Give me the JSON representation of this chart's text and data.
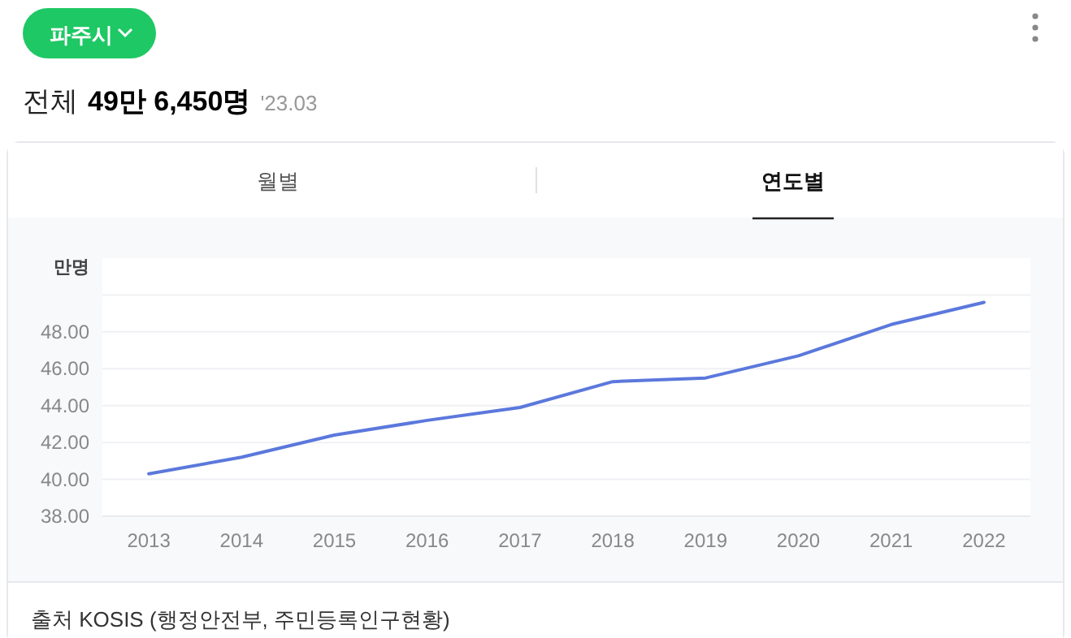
{
  "chart_data": {
    "type": "line",
    "title": "전체 49만 6,450명",
    "subtitle": "'23.03",
    "ylabel": "만명",
    "annotations": [
      "파주시",
      "월별",
      "연도별",
      "출처 KOSIS (행정안전부, 주민등록인구현황)"
    ],
    "categories": [
      "2013",
      "2014",
      "2015",
      "2016",
      "2017",
      "2018",
      "2019",
      "2020",
      "2021",
      "2022"
    ],
    "series": [
      {
        "color": "#5b78dc",
        "values": [
          40.3,
          41.2,
          42.4,
          43.2,
          43.9,
          45.3,
          45.5,
          46.7,
          48.4,
          49.6
        ]
      }
    ],
    "ylim": [
      38,
      52
    ],
    "yticks": [
      {
        "value": 38,
        "label": "38.00"
      },
      {
        "value": 40,
        "label": "40.00"
      },
      {
        "value": 42,
        "label": "42.00"
      },
      {
        "value": 44,
        "label": "44.00"
      },
      {
        "value": 46,
        "label": "46.00"
      },
      {
        "value": 48,
        "label": "48.00"
      },
      {
        "value": 50,
        "label": null
      }
    ],
    "grid": "y",
    "marker": "none",
    "line_style": "solid"
  }
}
